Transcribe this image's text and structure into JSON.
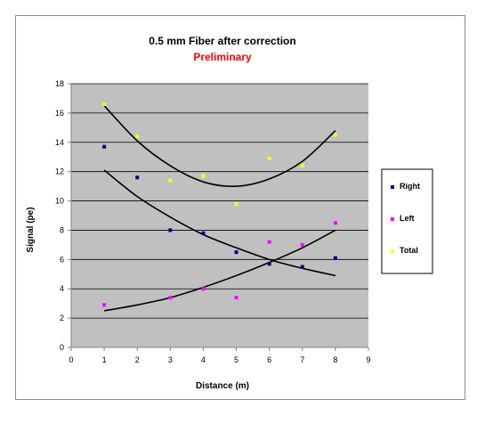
{
  "chart_data": {
    "type": "scatter",
    "title": "0.5 mm Fiber after correction",
    "subtitle": "Preliminary",
    "xlabel": "Distance (m)",
    "ylabel": "Signal (pe)",
    "xlim": [
      0,
      9
    ],
    "ylim": [
      0,
      18
    ],
    "xticks": [
      0,
      1,
      2,
      3,
      4,
      5,
      6,
      7,
      8,
      9
    ],
    "yticks": [
      0,
      2,
      4,
      6,
      8,
      10,
      12,
      14,
      16,
      18
    ],
    "grid": true,
    "legend_position": "right",
    "colors": {
      "plot_bg": "#c0c0c0",
      "grid": "#000000",
      "trend": "#000000",
      "subtitle": "#ff0000"
    },
    "series": [
      {
        "name": "Right",
        "color": "#000080",
        "x": [
          1,
          2,
          3,
          4,
          5,
          6,
          7,
          8
        ],
        "y": [
          13.7,
          11.6,
          8.0,
          7.8,
          6.5,
          5.7,
          5.5,
          6.1
        ],
        "trend": [
          [
            1,
            12.1
          ],
          [
            2,
            10.3
          ],
          [
            3,
            8.9
          ],
          [
            4,
            7.7
          ],
          [
            5,
            6.8
          ],
          [
            6,
            6.0
          ],
          [
            7,
            5.4
          ],
          [
            8,
            4.9
          ]
        ]
      },
      {
        "name": "Left",
        "color": "#ff00ff",
        "x": [
          1,
          3,
          4,
          5,
          6,
          7,
          8
        ],
        "y": [
          2.9,
          3.4,
          4.0,
          3.4,
          7.2,
          7.0,
          8.5
        ],
        "trend": [
          [
            1,
            2.5
          ],
          [
            2,
            2.9
          ],
          [
            3,
            3.4
          ],
          [
            4,
            4.1
          ],
          [
            5,
            4.9
          ],
          [
            6,
            5.8
          ],
          [
            7,
            6.8
          ],
          [
            8,
            8.0
          ]
        ]
      },
      {
        "name": "Total",
        "color": "#ffff00",
        "x": [
          1,
          2,
          3,
          4,
          5,
          6,
          7,
          8
        ],
        "y": [
          16.6,
          14.4,
          11.4,
          11.7,
          9.8,
          12.9,
          12.4,
          14.5
        ],
        "trend": [
          [
            1,
            16.5
          ],
          [
            2,
            14.1
          ],
          [
            3,
            12.4
          ],
          [
            4,
            11.3
          ],
          [
            5,
            11.0
          ],
          [
            6,
            11.5
          ],
          [
            7,
            12.7
          ],
          [
            8,
            14.8
          ]
        ]
      }
    ]
  }
}
